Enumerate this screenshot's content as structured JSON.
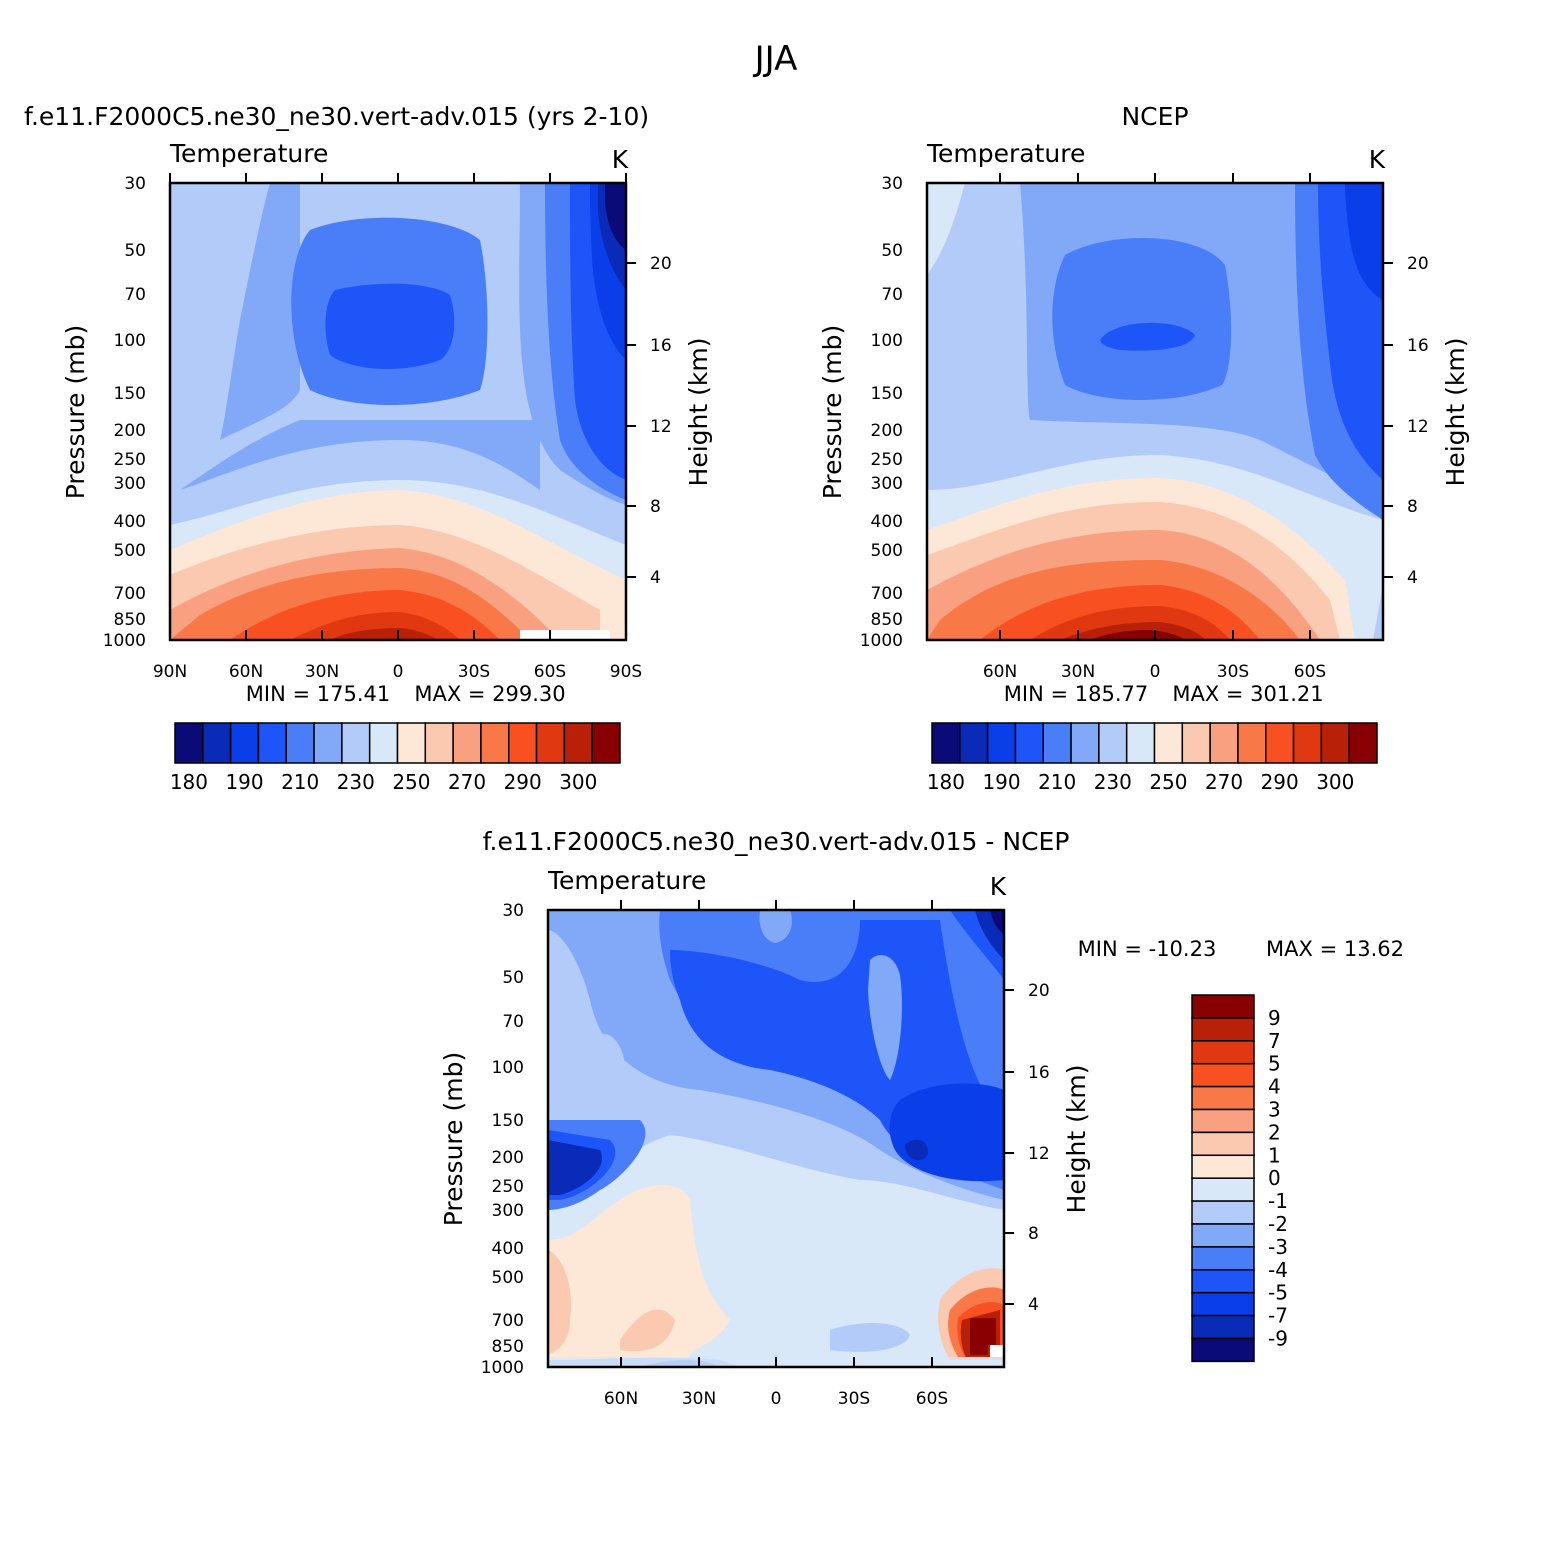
{
  "figure": {
    "season": "JJA"
  },
  "chart_data": [
    {
      "type": "heatmap",
      "title_left": "f.e11.F2000C5.ne30_ne30.vert-adv.015 (yrs 2-10)",
      "subtitle": "Temperature",
      "units": "K",
      "ylabel": "Pressure (mb)",
      "ylabel_right": "Height (km)",
      "x_ticks": [
        "90N",
        "60N",
        "30N",
        "0",
        "30S",
        "60S",
        "90S"
      ],
      "y_ticks": [
        "30",
        "50",
        "70",
        "100",
        "150",
        "200",
        "250",
        "300",
        "400",
        "500",
        "700",
        "850",
        "1000"
      ],
      "y_ticks_right": [
        "20",
        "16",
        "12",
        "8",
        "4"
      ],
      "min_label": "MIN = 175.41",
      "max_label": "MAX = 299.30",
      "min": 175.41,
      "max": 299.3,
      "colorbar_labels": [
        "180",
        "190",
        "210",
        "230",
        "250",
        "270",
        "290",
        "300"
      ]
    },
    {
      "type": "heatmap",
      "title_right": "NCEP",
      "subtitle": "Temperature",
      "units": "K",
      "ylabel": "Pressure (mb)",
      "ylabel_right": "Height (km)",
      "x_ticks": [
        "60N",
        "30N",
        "0",
        "30S",
        "60S"
      ],
      "y_ticks": [
        "30",
        "50",
        "70",
        "100",
        "150",
        "200",
        "250",
        "300",
        "400",
        "500",
        "700",
        "850",
        "1000"
      ],
      "y_ticks_right": [
        "20",
        "16",
        "12",
        "8",
        "4"
      ],
      "min_label": "MIN = 185.77",
      "max_label": "MAX = 301.21",
      "min": 185.77,
      "max": 301.21,
      "colorbar_labels": [
        "180",
        "190",
        "210",
        "230",
        "250",
        "270",
        "290",
        "300"
      ]
    },
    {
      "type": "heatmap",
      "title": "f.e11.F2000C5.ne30_ne30.vert-adv.015 - NCEP",
      "subtitle": "Temperature",
      "units": "K",
      "ylabel": "Pressure (mb)",
      "ylabel_right": "Height (km)",
      "x_ticks": [
        "60N",
        "30N",
        "0",
        "30S",
        "60S"
      ],
      "y_ticks": [
        "30",
        "50",
        "70",
        "100",
        "150",
        "200",
        "250",
        "300",
        "400",
        "500",
        "700",
        "850",
        "1000"
      ],
      "y_ticks_right": [
        "20",
        "16",
        "12",
        "8",
        "4"
      ],
      "min_label": "MIN = -10.23",
      "max_label": "MAX = 13.62",
      "min": -10.23,
      "max": 13.62,
      "colorbar_labels": [
        "9",
        "7",
        "5",
        "4",
        "3",
        "2",
        "1",
        "0",
        "-1",
        "-2",
        "-3",
        "-4",
        "-5",
        "-7",
        "-9"
      ]
    }
  ],
  "colors": {
    "temperature_palette": [
      "#0a0a78",
      "#0a2ab8",
      "#0a3ee8",
      "#1e55f8",
      "#4a7ef8",
      "#82a8f8",
      "#b2cbf8",
      "#d8e8f8",
      "#fde8d8",
      "#fbc8b0",
      "#f8a080",
      "#f87848",
      "#f85020",
      "#e03810",
      "#b82008",
      "#880000"
    ],
    "difference_palette": [
      "#880000",
      "#b82008",
      "#e03810",
      "#f85020",
      "#f87848",
      "#f8a080",
      "#fbc8b0",
      "#fde8d8",
      "#d8e8f8",
      "#b2cbf8",
      "#82a8f8",
      "#4a7ef8",
      "#1e55f8",
      "#0a3ee8",
      "#0a2ab8",
      "#0a0a78"
    ]
  }
}
